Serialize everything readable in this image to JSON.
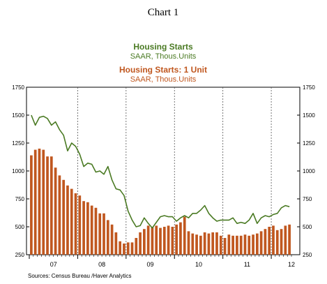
{
  "chart_data": {
    "type": "bar",
    "title": "Chart 1",
    "legend": [
      {
        "title": "Housing Starts",
        "subtitle": "SAAR, Thous.Units",
        "color": "#4a7a23"
      },
      {
        "title": "Housing Starts: 1 Unit",
        "subtitle": "SAAR, Thous.Units",
        "color": "#c0571f"
      }
    ],
    "source": "Sources: Census Bureau /Haver Analytics",
    "ylim": [
      250,
      1750
    ],
    "yticks": [
      "1750",
      "1500",
      "1250",
      "1000",
      "750",
      "500",
      "250"
    ],
    "ytick_values": [
      1750,
      1500,
      1250,
      1000,
      750,
      500,
      250
    ],
    "xticks": [
      "07",
      "08",
      "09",
      "10",
      "11",
      "12"
    ],
    "grid": "dotted vertical lines at year boundaries",
    "x_start": "2007-01",
    "series": [
      {
        "name": "Housing Starts: 1 Unit",
        "kind": "bar",
        "values": [
          1140,
          1190,
          1200,
          1190,
          1130,
          1130,
          1030,
          960,
          920,
          870,
          840,
          800,
          780,
          730,
          720,
          690,
          670,
          620,
          620,
          560,
          520,
          450,
          370,
          350,
          360,
          360,
          400,
          450,
          480,
          510,
          500,
          510,
          490,
          500,
          510,
          500,
          520,
          540,
          590,
          460,
          440,
          430,
          420,
          450,
          440,
          450,
          450,
          420,
          400,
          430,
          420,
          420,
          420,
          430,
          420,
          430,
          440,
          460,
          480,
          500,
          510,
          470,
          480,
          510,
          520
        ]
      },
      {
        "name": "Housing Starts",
        "kind": "line",
        "values": [
          1500,
          1410,
          1480,
          1490,
          1470,
          1410,
          1440,
          1370,
          1320,
          1180,
          1250,
          1220,
          1150,
          1040,
          1070,
          1060,
          990,
          1000,
          970,
          1040,
          920,
          840,
          830,
          780,
          640,
          560,
          500,
          510,
          580,
          530,
          490,
          540,
          590,
          600,
          590,
          590,
          550,
          580,
          600,
          580,
          620,
          620,
          650,
          690,
          620,
          580,
          550,
          560,
          560,
          560,
          580,
          530,
          540,
          530,
          560,
          620,
          530,
          580,
          600,
          590,
          610,
          620,
          670,
          690,
          680
        ]
      }
    ]
  }
}
